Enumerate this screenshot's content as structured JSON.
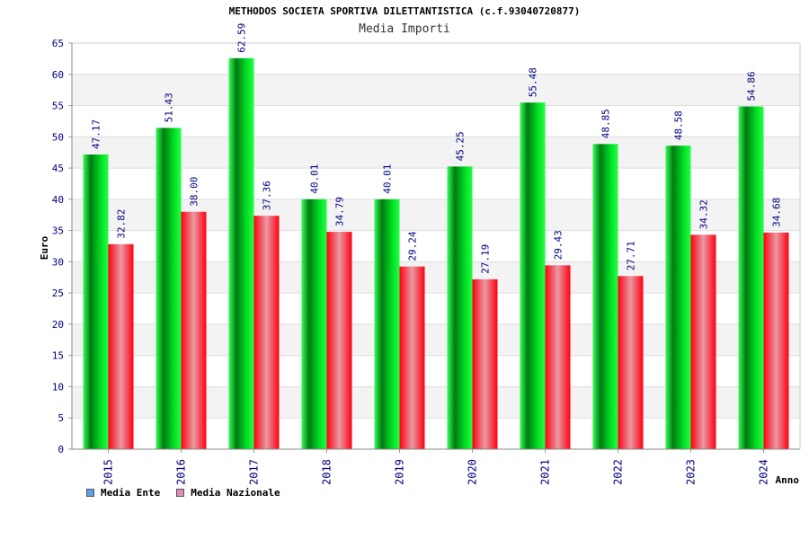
{
  "title": "METHODOS SOCIETA SPORTIVA DILETTANTISTICA (c.f.93040720877)",
  "subtitle": "Media Importi",
  "chart_data": {
    "type": "bar",
    "categories": [
      "2015",
      "2016",
      "2017",
      "2018",
      "2019",
      "2020",
      "2021",
      "2022",
      "2023",
      "2024"
    ],
    "series": [
      {
        "name": "Media Ente",
        "values": [
          47.17,
          51.43,
          62.59,
          40.01,
          40.01,
          45.25,
          55.48,
          48.85,
          48.58,
          54.86
        ],
        "labels": [
          "47.17",
          "51.43",
          "62.59",
          "40.01",
          "40.01",
          "45.25",
          "55.48",
          "48.85",
          "48.58",
          "54.86"
        ],
        "color": "#00cc22",
        "legend_color": "#5aa0e8"
      },
      {
        "name": "Media Nazionale",
        "values": [
          32.82,
          38.0,
          37.36,
          34.79,
          29.24,
          27.19,
          29.43,
          27.71,
          34.32,
          34.68
        ],
        "labels": [
          "32.82",
          "38.00",
          "37.36",
          "34.79",
          "29.24",
          "27.19",
          "29.43",
          "27.71",
          "34.32",
          "34.68"
        ],
        "color": "#ee1122",
        "legend_color": "#e38bb8"
      }
    ],
    "xlabel": "Anno",
    "ylabel": "Euro",
    "ylim": [
      0,
      65
    ],
    "yticks": [
      0,
      5,
      10,
      15,
      20,
      25,
      30,
      35,
      40,
      45,
      50,
      55,
      60,
      65
    ],
    "grid": true,
    "legend_position": "bottom-left"
  }
}
